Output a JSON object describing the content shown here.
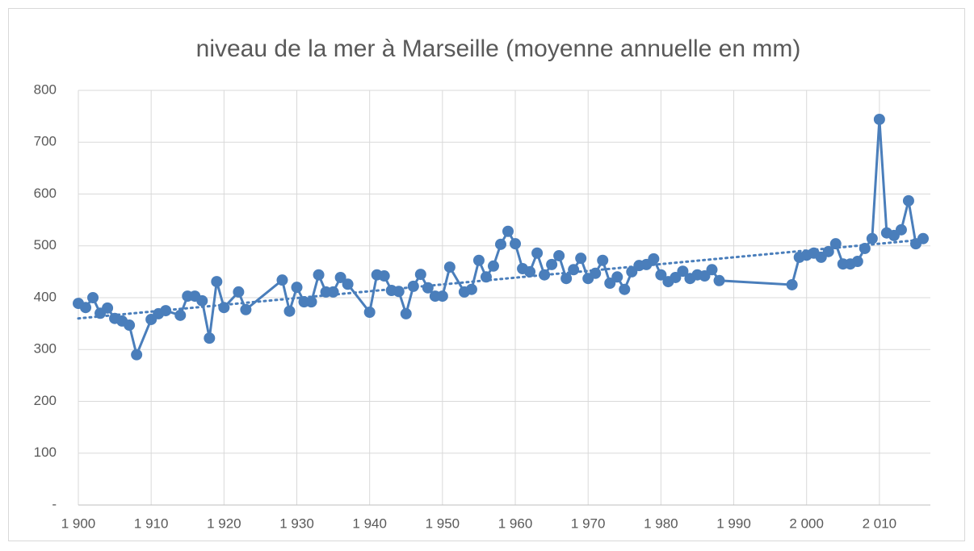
{
  "chart_data": {
    "type": "line",
    "title": "niveau de la mer à Marseille (moyenne annuelle en mm)",
    "x": [
      1900,
      1901,
      1902,
      1903,
      1904,
      1905,
      1906,
      1907,
      1908,
      1910,
      1911,
      1912,
      1914,
      1915,
      1916,
      1917,
      1918,
      1919,
      1920,
      1922,
      1923,
      1928,
      1929,
      1930,
      1931,
      1932,
      1933,
      1934,
      1935,
      1936,
      1937,
      1940,
      1941,
      1942,
      1943,
      1944,
      1945,
      1946,
      1947,
      1948,
      1949,
      1950,
      1951,
      1953,
      1954,
      1955,
      1956,
      1957,
      1958,
      1959,
      1960,
      1961,
      1962,
      1963,
      1964,
      1965,
      1966,
      1967,
      1968,
      1969,
      1970,
      1971,
      1972,
      1973,
      1974,
      1975,
      1976,
      1977,
      1978,
      1979,
      1980,
      1981,
      1982,
      1983,
      1984,
      1985,
      1986,
      1987,
      1988,
      1998,
      1999,
      2000,
      2001,
      2002,
      2003,
      2004,
      2005,
      2006,
      2007,
      2008,
      2009,
      2010,
      2011,
      2012,
      2013,
      2014,
      2015,
      2016
    ],
    "series": [
      {
        "color": "#4a7ebb",
        "values": [
          389,
          381,
          400,
          370,
          380,
          360,
          355,
          347,
          290,
          358,
          369,
          375,
          366,
          403,
          403,
          394,
          322,
          431,
          381,
          411,
          377,
          434,
          374,
          420,
          392,
          392,
          444,
          411,
          411,
          439,
          426,
          372,
          444,
          442,
          414,
          412,
          369,
          422,
          445,
          419,
          403,
          403,
          459,
          411,
          416,
          472,
          440,
          461,
          503,
          528,
          504,
          456,
          450,
          486,
          444,
          464,
          481,
          437,
          454,
          476,
          437,
          447,
          472,
          428,
          440,
          416,
          450,
          462,
          464,
          475,
          444,
          431,
          439,
          451,
          437,
          444,
          442,
          454,
          433,
          425,
          478,
          482,
          486,
          478,
          489,
          504,
          465,
          465,
          470,
          495,
          514,
          744,
          525,
          520,
          531,
          587,
          504,
          514
        ]
      }
    ],
    "trend": {
      "x": [
        1900,
        2016
      ],
      "values": [
        360,
        512
      ],
      "color": "#4a7ebb",
      "style": "dotted"
    },
    "xlim": [
      1900,
      2017
    ],
    "ylim": [
      0,
      800
    ],
    "xticks": [
      {
        "value": 1900,
        "label": "1 900"
      },
      {
        "value": 1910,
        "label": "1 910"
      },
      {
        "value": 1920,
        "label": "1 920"
      },
      {
        "value": 1930,
        "label": "1 930"
      },
      {
        "value": 1940,
        "label": "1 940"
      },
      {
        "value": 1950,
        "label": "1 950"
      },
      {
        "value": 1960,
        "label": "1 960"
      },
      {
        "value": 1970,
        "label": "1 970"
      },
      {
        "value": 1980,
        "label": "1 980"
      },
      {
        "value": 1990,
        "label": "1 990"
      },
      {
        "value": 2000,
        "label": "2 000"
      },
      {
        "value": 2010,
        "label": "2 010"
      }
    ],
    "yticks": [
      {
        "value": 0,
        "label": "-"
      },
      100,
      200,
      300,
      400,
      500,
      600,
      700,
      800
    ],
    "grid": true
  }
}
